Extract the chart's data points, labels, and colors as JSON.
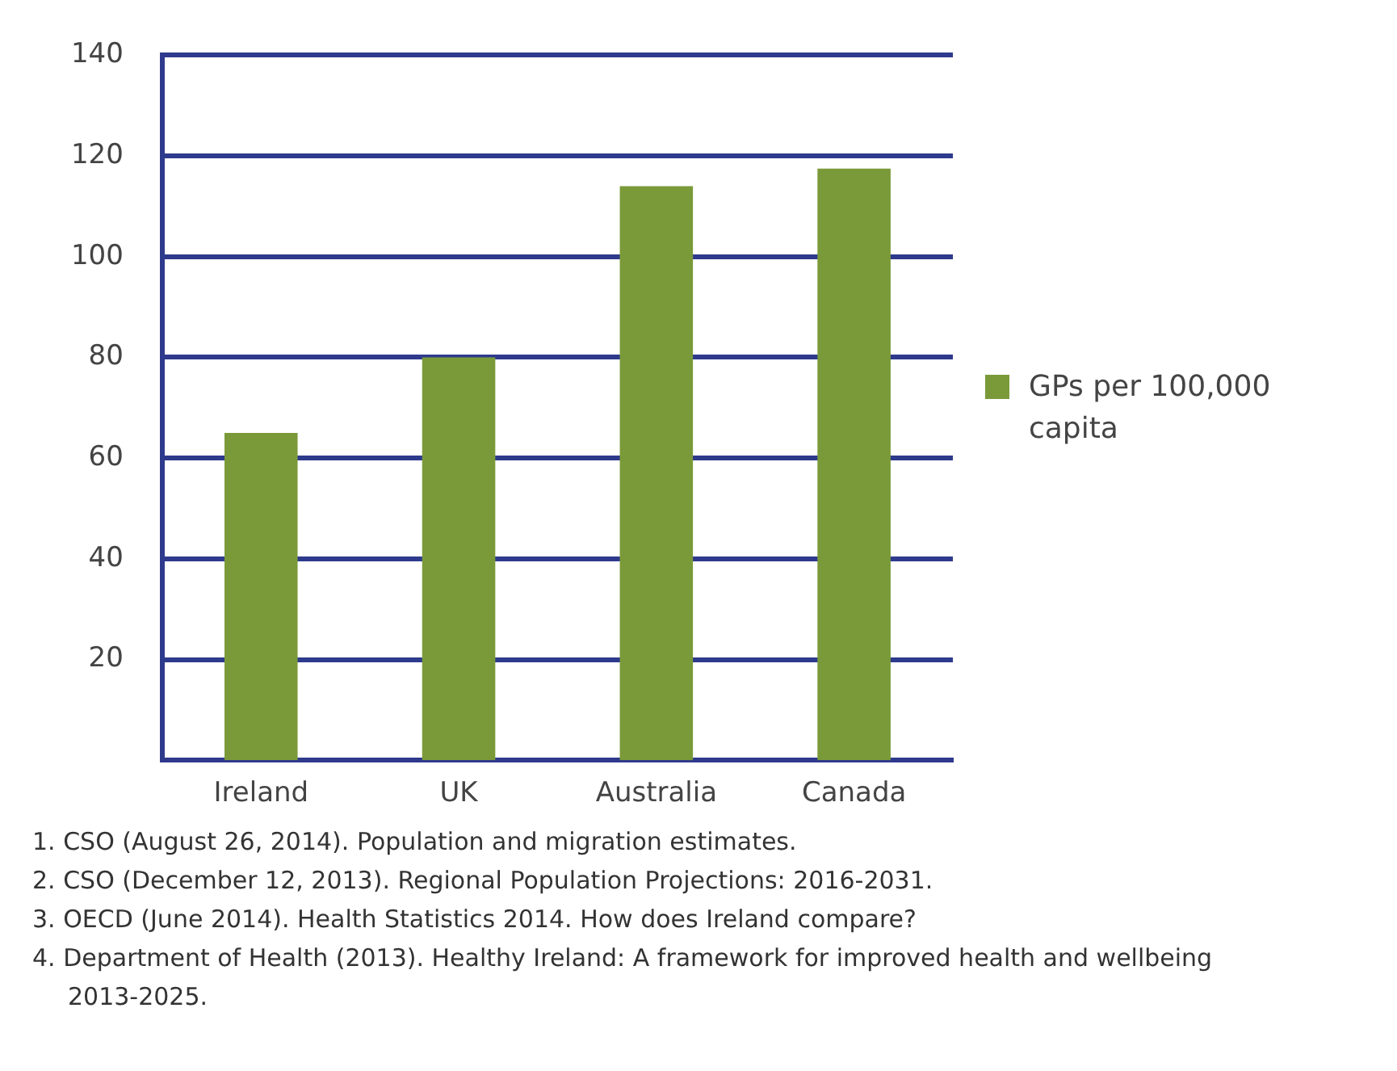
{
  "chart_data": {
    "type": "bar",
    "categories": [
      "Ireland",
      "UK",
      "Australia",
      "Canada"
    ],
    "series": [
      {
        "name": "GPs per 100,000 capita",
        "color": "#7a9a3a",
        "values": [
          65,
          80,
          114,
          117.5
        ]
      }
    ],
    "ylim": [
      0,
      140
    ],
    "yticks": [
      20,
      40,
      60,
      80,
      100,
      120,
      140
    ],
    "grid": "y",
    "legend": "right",
    "annotations": [
      "1.  CSO (August 26, 2014). Population and migration estimates.",
      "2.  CSO (December 12, 2013). Regional Population Projections: 2016-2031.",
      "3.  OECD (June 2014). Health Statistics 2014. How does Ireland compare?",
      "4.  Department of Health (2013). Healthy Ireland: A framework for improved health and wellbeing 2013-2025."
    ]
  }
}
